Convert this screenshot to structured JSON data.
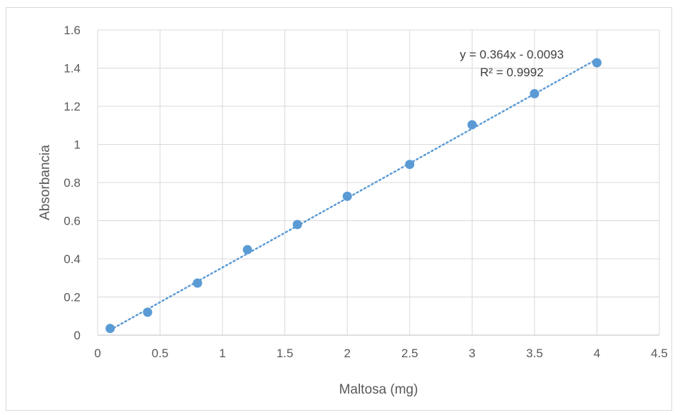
{
  "chart_data": {
    "type": "scatter",
    "title": "",
    "xlabel": "Maltosa (mg)",
    "ylabel": "Absorbancia",
    "xlim": [
      0,
      4.5
    ],
    "ylim": [
      0,
      1.6
    ],
    "x_ticks": [
      "0",
      "0.5",
      "1",
      "1.5",
      "2",
      "2.5",
      "3",
      "3.5",
      "4",
      "4.5"
    ],
    "y_ticks": [
      "0",
      "0.2",
      "0.4",
      "0.6",
      "0.8",
      "1",
      "1.2",
      "1.4",
      "1.6"
    ],
    "grid": true,
    "legend": "none",
    "series": [
      {
        "x": [
          0.1,
          0.4,
          0.8,
          1.2,
          1.6,
          2.0,
          2.5,
          3.0,
          3.5,
          4.0
        ],
        "y": [
          0.035,
          0.12,
          0.273,
          0.448,
          0.58,
          0.728,
          0.895,
          1.103,
          1.266,
          1.428
        ],
        "color": "#5b9bd5"
      }
    ],
    "trendline": {
      "type": "linear",
      "slope": 0.364,
      "intercept": -0.0093,
      "style": "dotted",
      "color": "#5b9bd5",
      "equation": "y = 0.364x - 0.0093",
      "r_squared": "R² = 0.9992"
    }
  }
}
